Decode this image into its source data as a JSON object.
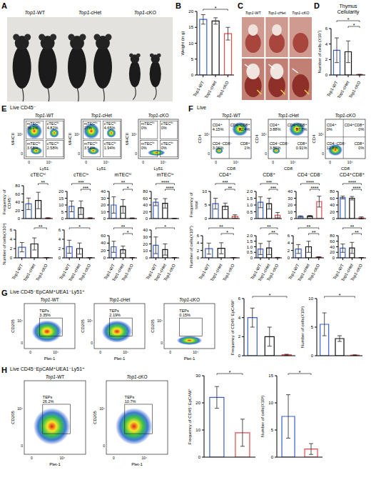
{
  "panel_letters": [
    "A",
    "B",
    "C",
    "D",
    "E",
    "F",
    "G",
    "H"
  ],
  "photo_labels": {
    "mice": [
      "Top1-WT",
      "Top1-cHet",
      "Top1-cKO"
    ],
    "thymus": [
      "Top1-WT",
      "Top1-cHet",
      "Top1-cKO"
    ]
  },
  "flow": [
    {
      "header": "Live CD45⁻",
      "x_label": "Ly51",
      "y_label": "MHCII",
      "x_tick_labels": [
        "0",
        "10⁴"
      ],
      "y_tick_labels": [
        "0",
        "10⁴"
      ],
      "plots": [
        {
          "title": "Top1-WT",
          "gates": [
            {
              "label": "mTECʰⁱ",
              "percent": "36.2%"
            },
            {
              "label": "cTECʰⁱ",
              "percent": "4.82%"
            },
            {
              "label": "mTECˡᵒ",
              "percent": "3.68%"
            },
            {
              "label": "cTECˡᵒ",
              "percent": "2.58%"
            }
          ]
        },
        {
          "title": "Top1-cHet",
          "gates": [
            {
              "label": "mTECʰⁱ",
              "percent": "27%"
            },
            {
              "label": "cTECʰⁱ",
              "percent": "4.65%"
            },
            {
              "label": "mTECˡᵒ",
              "percent": "3.54%"
            },
            {
              "label": "cTECˡᵒ",
              "percent": "1.94%"
            }
          ]
        },
        {
          "title": "Top1-cKO",
          "gates": [
            {
              "label": "mTECʰⁱ",
              "percent": "0%"
            },
            {
              "label": "cTECʰⁱ",
              "percent": "0%"
            },
            {
              "label": "mTECˡᵒ",
              "percent": "0%"
            },
            {
              "label": "cTECˡᵒ",
              "percent": "0%"
            }
          ]
        }
      ]
    },
    {
      "header": "Live",
      "x_label": "CD8",
      "y_label": "CD4",
      "x_tick_labels": [
        "0",
        "10⁴"
      ],
      "y_tick_labels": [
        "0",
        "10⁴"
      ],
      "plots": [
        {
          "title": "Top1-WT",
          "gates": [
            {
              "label": "CD4⁺",
              "percent": "4.15%"
            },
            {
              "label": "CD4⁺CD8⁺",
              "percent": "82.4%"
            },
            {
              "label": "CD4⁻CD8⁻",
              "percent": "3.06%"
            },
            {
              "label": "CD8⁺",
              "percent": "1%"
            }
          ]
        },
        {
          "title": "Top1-cHet",
          "gates": [
            {
              "label": "CD4⁺",
              "percent": "3.88%"
            },
            {
              "label": "CD4⁺CD8⁺",
              "percent": "57.7%"
            },
            {
              "label": "CD4⁻CD8⁻",
              "percent": "3.86%"
            },
            {
              "label": "CD8⁺",
              "percent": "0.91%"
            }
          ]
        },
        {
          "title": "Top1-cKO",
          "gates": [
            {
              "label": "CD4⁺",
              "percent": "0%"
            },
            {
              "label": "CD4⁺CD8⁺",
              "percent": "0%"
            },
            {
              "label": "CD4⁻CD8⁻",
              "percent": "12.8%"
            },
            {
              "label": "CD8⁺",
              "percent": "0%"
            }
          ]
        }
      ]
    },
    {
      "header": "Live CD45⁻EpCAM⁺UEA1⁻Ly51⁺",
      "x_label": "Plet-1",
      "y_label": "CD205",
      "x_tick_labels": [
        "0",
        "10⁴"
      ],
      "y_tick_labels": [
        "0",
        "10⁴"
      ],
      "plots": [
        {
          "title": "Top1-WT",
          "gates": [
            {
              "label": "TEPs",
              "percent": "3.35%"
            }
          ]
        },
        {
          "title": "Top1-cHet",
          "gates": [
            {
              "label": "TEPs",
              "percent": "2.19%"
            }
          ]
        },
        {
          "title": "Top1-cKO",
          "gates": [
            {
              "label": "TEPs",
              "percent": "0.15%"
            }
          ]
        }
      ]
    },
    {
      "header": "Live CD45⁻EpCAM⁺UEA1⁻Ly51⁺",
      "x_label": "Plet-1",
      "y_label": "CD205",
      "x_tick_labels": [
        "0",
        "10⁴"
      ],
      "y_tick_labels": [
        "0",
        "10⁴"
      ],
      "plots": [
        {
          "title": "Top1-WT",
          "gates": [
            {
              "label": "TEPs",
              "percent": "26.2%"
            }
          ]
        },
        {
          "title": "Top1-cKO",
          "gates": [
            {
              "label": "TEPs",
              "percent": "10.7%"
            }
          ]
        }
      ]
    }
  ],
  "chart_data": [
    {
      "type": "bar",
      "ylabel": "Weight (in g)",
      "categories": [
        "Top1-WT",
        "Top1-cHet",
        "Top1-cKO"
      ],
      "values": [
        17.5,
        17,
        13
      ],
      "errors": [
        1.5,
        1,
        2
      ],
      "colors": [
        "#3a5fcd",
        "#111111",
        "#e8474c"
      ],
      "ylim": [
        0,
        20
      ],
      "yticks": [
        0,
        5,
        10,
        15,
        20
      ],
      "significance": [
        {
          "from": 0,
          "to": 2,
          "label": "*"
        }
      ]
    },
    {
      "type": "bar",
      "title": "Thymus Cellularity",
      "ylabel": "Number of cells (X10⁷)",
      "categories": [
        "Top1-WT",
        "Top1-cHet",
        "Top1-cKO"
      ],
      "values": [
        3.2,
        3.0,
        0.05
      ],
      "errors": [
        1.6,
        1.4,
        0.03
      ],
      "colors": [
        "#3a5fcd",
        "#111111",
        "#e8474c"
      ],
      "ylim": [
        0,
        6
      ],
      "yticks": [
        0,
        2,
        4,
        6
      ],
      "significance": [
        {
          "from": 0,
          "to": 2,
          "label": "*"
        },
        {
          "from": 1,
          "to": 2,
          "label": "*"
        }
      ]
    },
    {
      "type": "bar",
      "title": "cTECʰⁱ",
      "ylabel": "Frequency of CD45⁻",
      "tick_labels": "y",
      "categories": [
        "Top1-WT",
        "Top1-cHet",
        "Top1-cKO"
      ],
      "values": [
        36,
        44,
        1
      ],
      "errors": [
        14,
        20,
        1
      ],
      "colors": [
        "#3a5fcd",
        "#111111",
        "#e8474c"
      ],
      "ylim": [
        0,
        80
      ],
      "yticks": [
        0,
        20,
        40,
        60,
        80
      ],
      "significance": [
        {
          "from": 1,
          "to": 2,
          "label": "**"
        }
      ]
    },
    {
      "type": "bar",
      "title": "cTECˡᵒ",
      "tick_labels": "y",
      "categories": [
        "Top1-WT",
        "Top1-cHet",
        "Top1-cKO"
      ],
      "values": [
        9,
        8,
        0.3
      ],
      "errors": [
        4,
        5,
        0.3
      ],
      "colors": [
        "#3a5fcd",
        "#111111",
        "#e8474c"
      ],
      "ylim": [
        0,
        20
      ],
      "yticks": [
        0,
        5,
        10,
        15,
        20
      ],
      "significance": [
        {
          "from": 0,
          "to": 2,
          "label": "***"
        },
        {
          "from": 1,
          "to": 2,
          "label": "***"
        }
      ]
    },
    {
      "type": "bar",
      "title": "mTECʰⁱ",
      "tick_labels": "y",
      "categories": [
        "Top1-WT",
        "Top1-cHet",
        "Top1-cKO"
      ],
      "values": [
        20,
        18,
        0.5
      ],
      "errors": [
        12,
        10,
        0.5
      ],
      "colors": [
        "#3a5fcd",
        "#111111",
        "#e8474c"
      ],
      "ylim": [
        0,
        40
      ],
      "yticks": [
        0,
        10,
        20,
        30,
        40
      ],
      "significance": [
        {
          "from": 0,
          "to": 2,
          "label": "**"
        },
        {
          "from": 1,
          "to": 2,
          "label": "*"
        }
      ]
    },
    {
      "type": "bar",
      "title": "mTECˡᵒ",
      "tick_labels": "y",
      "categories": [
        "Top1-WT",
        "Top1-cHet",
        "Top1-cKO"
      ],
      "values": [
        48,
        45,
        0.5
      ],
      "errors": [
        10,
        14,
        0.5
      ],
      "colors": [
        "#3a5fcd",
        "#111111",
        "#e8474c"
      ],
      "ylim": [
        0,
        80
      ],
      "yticks": [
        0,
        20,
        40,
        60,
        80
      ],
      "significance": [
        {
          "from": 0,
          "to": 2,
          "label": "****"
        },
        {
          "from": 1,
          "to": 2,
          "label": "****"
        }
      ]
    },
    {
      "type": "bar",
      "ylabel": "Number of cells(X10³)",
      "categories": [
        "Top1-WT",
        "Top1-cHet",
        "Top1-cKO"
      ],
      "values": [
        2.3,
        3,
        0.02
      ],
      "errors": [
        1,
        1.3,
        0.02
      ],
      "colors": [
        "#3a5fcd",
        "#111111",
        "#e8474c"
      ],
      "ylim": [
        0,
        6
      ],
      "yticks": [
        0,
        2,
        4,
        6
      ],
      "significance": [
        {
          "from": 1,
          "to": 2,
          "label": "**"
        }
      ]
    },
    {
      "type": "bar",
      "categories": [
        "Top1-WT",
        "Top1-cHet",
        "Top1-cKO"
      ],
      "values": [
        2.4,
        2,
        0.02
      ],
      "errors": [
        1.4,
        1.2,
        0.02
      ],
      "colors": [
        "#3a5fcd",
        "#111111",
        "#e8474c"
      ],
      "ylim": [
        0,
        6
      ],
      "yticks": [
        0,
        2,
        4,
        6
      ],
      "significance": [
        {
          "from": 0,
          "to": 2,
          "label": "*"
        }
      ]
    },
    {
      "type": "bar",
      "categories": [
        "Top1-WT",
        "Top1-cHet",
        "Top1-cKO"
      ],
      "values": [
        30,
        22,
        0.5
      ],
      "errors": [
        15,
        10,
        0.5
      ],
      "colors": [
        "#3a5fcd",
        "#111111",
        "#e8474c"
      ],
      "ylim": [
        0,
        60
      ],
      "yticks": [
        0,
        20,
        40,
        60
      ],
      "significance": [
        {
          "from": 0,
          "to": 2,
          "label": "**"
        },
        {
          "from": 1,
          "to": 2,
          "label": "*"
        }
      ]
    },
    {
      "type": "bar",
      "categories": [
        "Top1-WT",
        "Top1-cHet",
        "Top1-cKO"
      ],
      "values": [
        18,
        12,
        0.2
      ],
      "errors": [
        12,
        8,
        0.2
      ],
      "colors": [
        "#3a5fcd",
        "#111111",
        "#e8474c"
      ],
      "ylim": [
        0,
        40
      ],
      "yticks": [
        0,
        10,
        20,
        30,
        40
      ],
      "significance": [
        {
          "from": 0,
          "to": 2,
          "label": "*"
        }
      ]
    },
    {
      "type": "bar",
      "title": "CD4⁺",
      "ylabel": "Frequency of total",
      "tick_labels": "y",
      "categories": [
        "Top1-WT",
        "Top1-cHet",
        "Top1-cKO"
      ],
      "values": [
        5.5,
        4.5,
        0.8
      ],
      "errors": [
        2,
        1.2,
        0.6
      ],
      "colors": [
        "#3a5fcd",
        "#111111",
        "#e8474c"
      ],
      "ylim": [
        0,
        10
      ],
      "yticks": [
        0,
        5,
        10
      ],
      "significance": [
        {
          "from": 0,
          "to": 2,
          "label": "***"
        },
        {
          "from": 1,
          "to": 2,
          "label": "**"
        }
      ]
    },
    {
      "type": "bar",
      "title": "CD8⁺",
      "tick_labels": "y",
      "categories": [
        "Top1-WT",
        "Top1-cHet",
        "Top1-cKO"
      ],
      "values": [
        1.2,
        1.1,
        0.25
      ],
      "errors": [
        0.4,
        0.4,
        0.2
      ],
      "colors": [
        "#3a5fcd",
        "#111111",
        "#e8474c"
      ],
      "ylim": [
        0,
        2
      ],
      "yticks": [
        0,
        0.5,
        {
          "value": 1,
          "label": "1.0"
        },
        1.5,
        {
          "value": 2,
          "label": "2.0"
        }
      ],
      "significance": [
        {
          "from": 0,
          "to": 2,
          "label": "***"
        },
        {
          "from": 1,
          "to": 2,
          "label": "***"
        }
      ]
    },
    {
      "type": "bar",
      "title": "CD4⁻CD8⁻",
      "tick_labels": "y",
      "categories": [
        "Top1-WT",
        "Top1-cHet",
        "Top1-cKO"
      ],
      "values": [
        3,
        3.5,
        25
      ],
      "errors": [
        1,
        1,
        8
      ],
      "colors": [
        "#3a5fcd",
        "#111111",
        "#e8474c"
      ],
      "ylim": [
        0,
        40
      ],
      "yticks": [
        0,
        10,
        20,
        30,
        40
      ],
      "significance": [
        {
          "from": 0,
          "to": 2,
          "label": "****"
        },
        {
          "from": 1,
          "to": 2,
          "label": "****"
        }
      ]
    },
    {
      "type": "bar",
      "title": "CD4⁺CD8⁺",
      "tick_labels": "y",
      "categories": [
        "Top1-WT",
        "Top1-cHet",
        "Top1-cKO"
      ],
      "values": [
        62,
        60,
        2
      ],
      "errors": [
        4,
        5,
        3
      ],
      "colors": [
        "#3a5fcd",
        "#111111",
        "#e8474c"
      ],
      "ylim": [
        0,
        80
      ],
      "yticks": [
        0,
        20,
        40,
        60,
        80
      ],
      "significance": [
        {
          "from": 0,
          "to": 2,
          "label": "****"
        },
        {
          "from": 1,
          "to": 2,
          "label": "****"
        }
      ]
    },
    {
      "type": "bar",
      "ylabel": "Number of cells(X10⁶)",
      "categories": [
        "Top1-WT",
        "Top1-cHet",
        "Top1-cKO"
      ],
      "values": [
        2.5,
        2.6,
        0.05
      ],
      "errors": [
        1.5,
        1.5,
        0.05
      ],
      "colors": [
        "#3a5fcd",
        "#111111",
        "#e8474c"
      ],
      "ylim": [
        0,
        6
      ],
      "yticks": [
        0,
        2,
        4,
        6
      ],
      "significance": [
        {
          "from": 0,
          "to": 2,
          "label": "**"
        },
        {
          "from": 1,
          "to": 2,
          "label": "*"
        }
      ]
    },
    {
      "type": "bar",
      "categories": [
        "Top1-WT",
        "Top1-cHet",
        "Top1-cKO"
      ],
      "values": [
        0.8,
        0.9,
        0.02
      ],
      "errors": [
        0.5,
        0.6,
        0.02
      ],
      "colors": [
        "#3a5fcd",
        "#111111",
        "#e8474c"
      ],
      "ylim": [
        0,
        2
      ],
      "yticks": [
        0,
        0.5,
        {
          "value": 1,
          "label": "1.0"
        },
        1.5,
        {
          "value": 2,
          "label": "2.0"
        }
      ],
      "significance": [
        {
          "from": 0,
          "to": 2,
          "label": "**"
        },
        {
          "from": 1,
          "to": 2,
          "label": "**"
        }
      ]
    },
    {
      "type": "bar",
      "categories": [
        "Top1-WT",
        "Top1-cHet",
        "Top1-cKO"
      ],
      "values": [
        2.4,
        3,
        0.2
      ],
      "errors": [
        1.2,
        1.5,
        0.1
      ],
      "colors": [
        "#3a5fcd",
        "#111111",
        "#e8474c"
      ],
      "ylim": [
        0,
        6
      ],
      "yticks": [
        0,
        2,
        4,
        6
      ],
      "significance": [
        {
          "from": 0,
          "to": 2,
          "label": "**"
        },
        {
          "from": 1,
          "to": 2,
          "label": "**"
        }
      ]
    },
    {
      "type": "bar",
      "categories": [
        "Top1-WT",
        "Top1-cHet",
        "Top1-cKO"
      ],
      "values": [
        35,
        36,
        0.5
      ],
      "errors": [
        15,
        20,
        0.5
      ],
      "colors": [
        "#3a5fcd",
        "#111111",
        "#e8474c"
      ],
      "ylim": [
        0,
        80
      ],
      "yticks": [
        0,
        20,
        40,
        60,
        80
      ],
      "significance": [
        {
          "from": 0,
          "to": 2,
          "label": "**"
        },
        {
          "from": 1,
          "to": 2,
          "label": "**"
        }
      ]
    },
    {
      "type": "bar",
      "ylabel": "Frequency of CD45⁻EpCAM⁺",
      "tick_labels": "y",
      "categories": [
        "Top1-WT",
        "Top1-cHet",
        "Top1-cKO"
      ],
      "values": [
        4,
        2,
        0.1
      ],
      "errors": [
        1,
        1,
        0.05
      ],
      "colors": [
        "#3a5fcd",
        "#111111",
        "#e8474c"
      ],
      "ylim": [
        0,
        6
      ],
      "yticks": [
        0,
        2,
        4,
        6
      ],
      "significance": [
        {
          "from": 0,
          "to": 2,
          "label": "*"
        }
      ]
    },
    {
      "type": "bar",
      "ylabel": "Number of cells(X10³)",
      "tick_labels": "y",
      "categories": [
        "Top1-WT",
        "Top1-cHet",
        "Top1-cKO"
      ],
      "values": [
        5.5,
        3,
        0.1
      ],
      "errors": [
        2,
        0.5,
        0.05
      ],
      "colors": [
        "#3a5fcd",
        "#111111",
        "#e8474c"
      ],
      "ylim": [
        0,
        10
      ],
      "yticks": [
        0,
        5,
        10
      ],
      "significance": [
        {
          "from": 0,
          "to": 2,
          "label": "*"
        }
      ]
    },
    {
      "type": "bar",
      "ylabel": "Frequency of CD45⁻EpCAM⁺",
      "tick_labels": "y",
      "categories": [
        "Top1-WT",
        "Top1-cKO"
      ],
      "values": [
        22,
        9
      ],
      "errors": [
        4,
        5
      ],
      "colors": [
        "#3a5fcd",
        "#e8474c"
      ],
      "ylim": [
        0,
        30
      ],
      "yticks": [
        0,
        10,
        20,
        30
      ],
      "significance": [
        {
          "from": 0,
          "to": 1,
          "label": "*"
        }
      ]
    },
    {
      "type": "bar",
      "ylabel": "Number of cells(X10³)",
      "tick_labels": "y",
      "categories": [
        "Top1-WT",
        "Top1-cKO"
      ],
      "values": [
        7.5,
        1.5
      ],
      "errors": [
        4,
        1
      ],
      "colors": [
        "#3a5fcd",
        "#e8474c"
      ],
      "ylim": [
        0,
        15
      ],
      "yticks": [
        0,
        5,
        10,
        15
      ],
      "significance": [
        {
          "from": 0,
          "to": 1,
          "label": "*"
        }
      ]
    }
  ]
}
